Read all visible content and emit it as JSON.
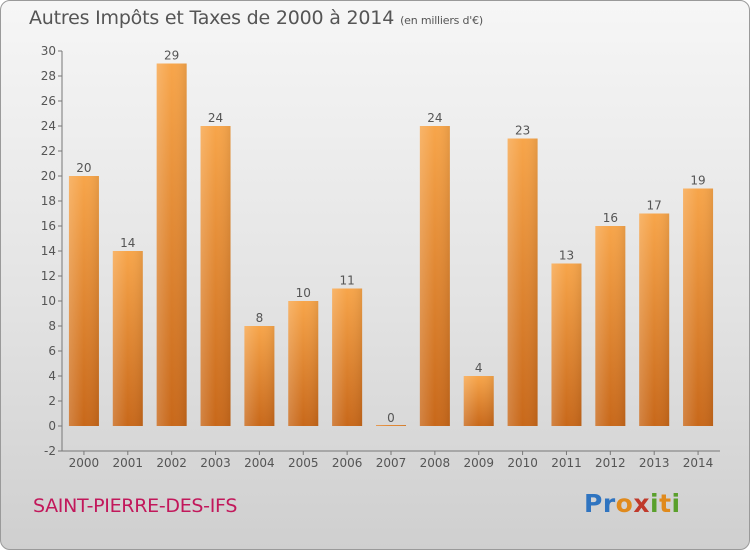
{
  "title": {
    "main": "Autres Impôts et Taxes de 2000 à 2014",
    "unit": "(en milliers d'€)"
  },
  "location": "SAINT-PIERRE-DES-IFS",
  "logo": "Proxiti",
  "colors": {
    "bar_top": "#f7a54a",
    "bar_bottom": "#c8681a",
    "text": "#555555",
    "location": "#c2185b"
  },
  "chart_data": {
    "type": "bar",
    "title": "Autres Impôts et Taxes de 2000 à 2014",
    "subtitle": "(en milliers d'€)",
    "xlabel": "",
    "ylabel": "",
    "categories": [
      "2000",
      "2001",
      "2002",
      "2003",
      "2004",
      "2005",
      "2006",
      "2007",
      "2008",
      "2009",
      "2010",
      "2011",
      "2012",
      "2013",
      "2014"
    ],
    "values": [
      20,
      14,
      29,
      24,
      8,
      10,
      11,
      0,
      24,
      4,
      23,
      13,
      16,
      17,
      19
    ],
    "ylim": [
      -2,
      30
    ],
    "yticks": [
      -2,
      0,
      2,
      4,
      6,
      8,
      10,
      12,
      14,
      16,
      18,
      20,
      22,
      24,
      26,
      28,
      30
    ],
    "grid": false,
    "legend": "none"
  }
}
